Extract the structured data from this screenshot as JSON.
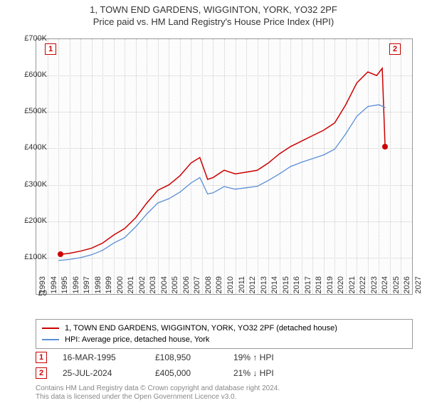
{
  "title": "1, TOWN END GARDENS, WIGGINTON, YORK, YO32 2PF",
  "subtitle": "Price paid vs. HM Land Registry's House Price Index (HPI)",
  "chart": {
    "type": "line",
    "background_color": "#fcfcfc",
    "grid_color": "#cccccc",
    "border_color": "#999999",
    "ylim": [
      0,
      700000
    ],
    "ytick_step": 100000,
    "yticks": [
      "£0",
      "£100K",
      "£200K",
      "£300K",
      "£400K",
      "£500K",
      "£600K",
      "£700K"
    ],
    "xlim": [
      1993,
      2027
    ],
    "xticks": [
      1993,
      1994,
      1995,
      1996,
      1997,
      1998,
      1999,
      2000,
      2001,
      2002,
      2003,
      2004,
      2005,
      2006,
      2007,
      2008,
      2009,
      2010,
      2011,
      2012,
      2013,
      2014,
      2015,
      2016,
      2017,
      2018,
      2019,
      2020,
      2021,
      2022,
      2023,
      2024,
      2025,
      2026,
      2027
    ],
    "series": [
      {
        "label": "1, TOWN END GARDENS, WIGGINTON, YORK, YO32 2PF (detached house)",
        "color": "#cc0000",
        "line_width": 1.5,
        "data": [
          [
            1995.2,
            108950
          ],
          [
            1996,
            112000
          ],
          [
            1997,
            118000
          ],
          [
            1998,
            126000
          ],
          [
            1999,
            140000
          ],
          [
            2000,
            162000
          ],
          [
            2001,
            180000
          ],
          [
            2002,
            210000
          ],
          [
            2003,
            250000
          ],
          [
            2004,
            285000
          ],
          [
            2005,
            300000
          ],
          [
            2006,
            325000
          ],
          [
            2007,
            360000
          ],
          [
            2007.8,
            375000
          ],
          [
            2008.5,
            315000
          ],
          [
            2009,
            320000
          ],
          [
            2010,
            340000
          ],
          [
            2011,
            330000
          ],
          [
            2012,
            335000
          ],
          [
            2013,
            340000
          ],
          [
            2014,
            360000
          ],
          [
            2015,
            385000
          ],
          [
            2016,
            405000
          ],
          [
            2017,
            420000
          ],
          [
            2018,
            435000
          ],
          [
            2019,
            450000
          ],
          [
            2020,
            470000
          ],
          [
            2021,
            520000
          ],
          [
            2022,
            580000
          ],
          [
            2023,
            610000
          ],
          [
            2023.8,
            600000
          ],
          [
            2024.3,
            620000
          ],
          [
            2024.56,
            405000
          ]
        ]
      },
      {
        "label": "HPI: Average price, detached house, York",
        "color": "#5b8fd6",
        "line_width": 1.3,
        "data": [
          [
            1995,
            92000
          ],
          [
            1996,
            95000
          ],
          [
            1997,
            100000
          ],
          [
            1998,
            108000
          ],
          [
            1999,
            120000
          ],
          [
            2000,
            140000
          ],
          [
            2001,
            155000
          ],
          [
            2002,
            185000
          ],
          [
            2003,
            220000
          ],
          [
            2004,
            250000
          ],
          [
            2005,
            262000
          ],
          [
            2006,
            280000
          ],
          [
            2007,
            305000
          ],
          [
            2007.8,
            320000
          ],
          [
            2008.5,
            275000
          ],
          [
            2009,
            278000
          ],
          [
            2010,
            295000
          ],
          [
            2011,
            288000
          ],
          [
            2012,
            292000
          ],
          [
            2013,
            296000
          ],
          [
            2014,
            312000
          ],
          [
            2015,
            330000
          ],
          [
            2016,
            350000
          ],
          [
            2017,
            362000
          ],
          [
            2018,
            372000
          ],
          [
            2019,
            382000
          ],
          [
            2020,
            398000
          ],
          [
            2021,
            440000
          ],
          [
            2022,
            488000
          ],
          [
            2023,
            515000
          ],
          [
            2024,
            520000
          ],
          [
            2024.6,
            512000
          ]
        ]
      }
    ],
    "markers": [
      {
        "n": "1",
        "x": 1995.2,
        "y": 108950
      },
      {
        "n": "2",
        "x": 2024.56,
        "y": 405000
      }
    ],
    "label_fontsize": 11,
    "title_fontsize": 13
  },
  "legend": {
    "items": [
      {
        "color": "#cc0000",
        "label": "1, TOWN END GARDENS, WIGGINTON, YORK, YO32 2PF (detached house)"
      },
      {
        "color": "#5b8fd6",
        "label": "HPI: Average price, detached house, York"
      }
    ]
  },
  "sales": [
    {
      "n": "1",
      "date": "16-MAR-1995",
      "price": "£108,950",
      "pct": "19% ↑ HPI"
    },
    {
      "n": "2",
      "date": "25-JUL-2024",
      "price": "£405,000",
      "pct": "21% ↓ HPI"
    }
  ],
  "footer": {
    "line1": "Contains HM Land Registry data © Crown copyright and database right 2024.",
    "line2": "This data is licensed under the Open Government Licence v3.0."
  }
}
